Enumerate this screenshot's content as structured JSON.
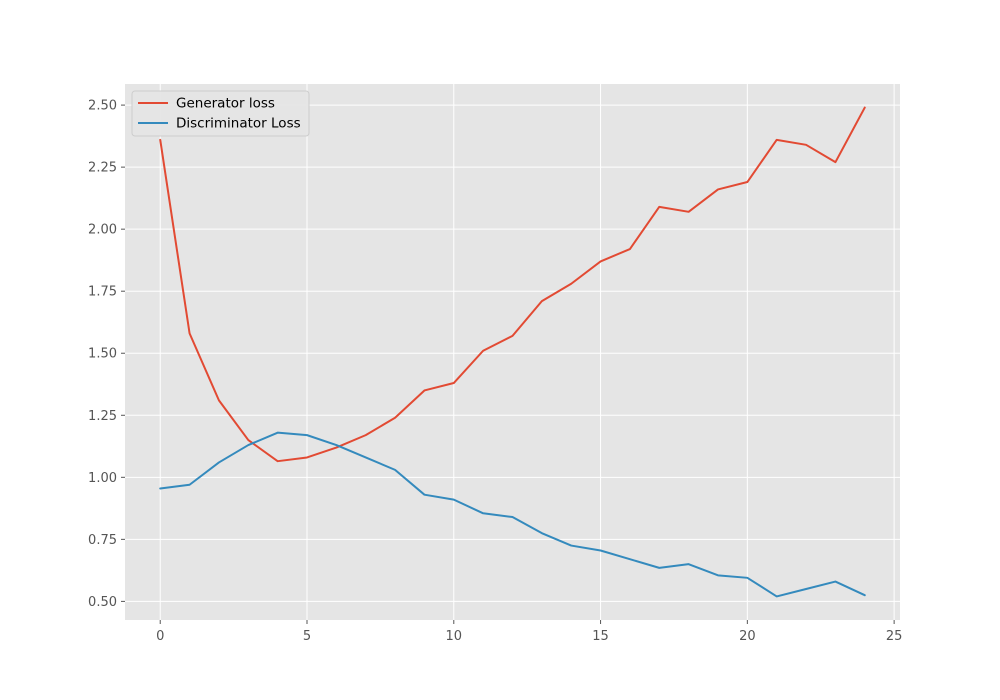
{
  "chart_data": {
    "type": "line",
    "title": "",
    "xlabel": "",
    "ylabel": "",
    "xlim": [
      -1.2,
      25.2
    ],
    "ylim": [
      0.425,
      2.585
    ],
    "x_ticks": [
      0,
      5,
      10,
      15,
      20,
      25
    ],
    "y_ticks": [
      0.5,
      0.75,
      1.0,
      1.25,
      1.5,
      1.75,
      2.0,
      2.25,
      2.5
    ],
    "x_tick_labels": [
      "0",
      "5",
      "10",
      "15",
      "20",
      "25"
    ],
    "y_tick_labels": [
      "0.50",
      "0.75",
      "1.00",
      "1.25",
      "1.50",
      "1.75",
      "2.00",
      "2.25",
      "2.50"
    ],
    "grid": true,
    "legend_position": "upper-left",
    "x": [
      0,
      1,
      2,
      3,
      4,
      5,
      6,
      7,
      8,
      9,
      10,
      11,
      12,
      13,
      14,
      15,
      16,
      17,
      18,
      19,
      20,
      21,
      22,
      23,
      24
    ],
    "series": [
      {
        "name": "Generator loss",
        "color": "#E24A33",
        "values": [
          2.36,
          1.58,
          1.31,
          1.15,
          1.065,
          1.08,
          1.12,
          1.17,
          1.24,
          1.35,
          1.38,
          1.51,
          1.57,
          1.71,
          1.78,
          1.87,
          1.92,
          2.09,
          2.07,
          2.16,
          2.19,
          2.36,
          2.34,
          2.27,
          2.49
        ]
      },
      {
        "name": "Discriminator Loss",
        "color": "#348ABD",
        "values": [
          0.955,
          0.97,
          1.06,
          1.13,
          1.18,
          1.17,
          1.13,
          1.08,
          1.03,
          0.93,
          0.91,
          0.855,
          0.84,
          0.775,
          0.725,
          0.705,
          0.67,
          0.635,
          0.65,
          0.605,
          0.595,
          0.52,
          0.55,
          0.58,
          0.525
        ]
      }
    ]
  }
}
